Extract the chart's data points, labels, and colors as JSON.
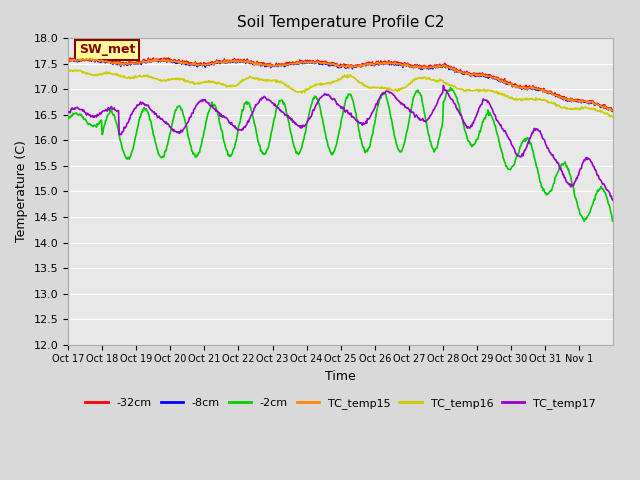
{
  "title": "Soil Temperature Profile C2",
  "xlabel": "Time",
  "ylabel": "Temperature (C)",
  "ylim": [
    12.0,
    18.0
  ],
  "yticks": [
    12.0,
    12.5,
    13.0,
    13.5,
    14.0,
    14.5,
    15.0,
    15.5,
    16.0,
    16.5,
    17.0,
    17.5,
    18.0
  ],
  "xtick_labels": [
    "Oct 17",
    "Oct 18",
    "Oct 19",
    "Oct 20",
    "Oct 21",
    "Oct 22",
    "Oct 23",
    "Oct 24",
    "Oct 25",
    "Oct 26",
    "Oct 27",
    "Oct 28",
    "Oct 29",
    "Oct 30",
    "Oct 31",
    "Nov 1"
  ],
  "n_days": 16,
  "colors": {
    "neg32cm": "#ff0000",
    "neg8cm": "#0000ff",
    "neg2cm": "#00cc00",
    "TC_temp15": "#ff8800",
    "TC_temp16": "#cccc00",
    "TC_temp17": "#9900cc"
  },
  "legend_labels": [
    "-32cm",
    "-8cm",
    "-2cm",
    "TC_temp15",
    "TC_temp16",
    "TC_temp17"
  ],
  "annotation_text": "SW_met",
  "annotation_bg": "#ffff99",
  "annotation_border": "#880000",
  "fig_bg": "#d9d9d9",
  "plot_bg": "#e8e8e8"
}
